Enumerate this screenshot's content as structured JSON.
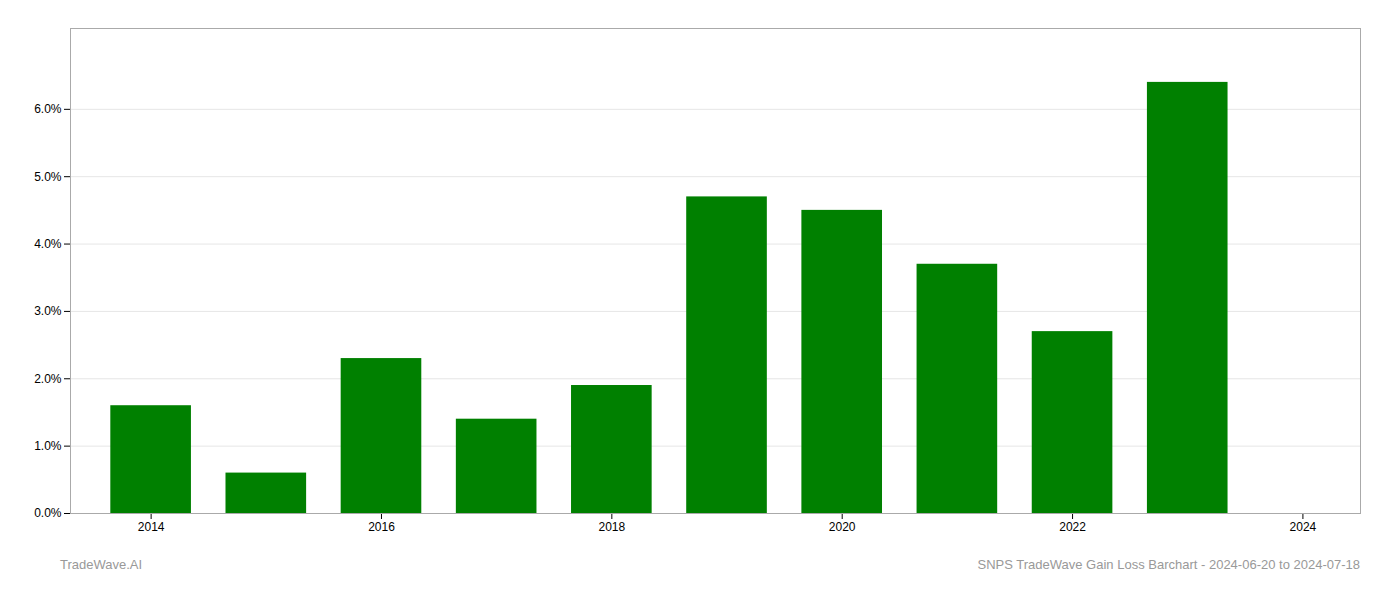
{
  "chart_data": {
    "type": "bar",
    "x": [
      2014,
      2015,
      2016,
      2017,
      2018,
      2019,
      2020,
      2021,
      2022,
      2023
    ],
    "values": [
      0.016,
      0.006,
      0.023,
      0.014,
      0.019,
      0.047,
      0.045,
      0.037,
      0.027,
      0.064
    ],
    "color": "#008000",
    "xlim": [
      2013.3,
      2024.5
    ],
    "xticks": [
      2014,
      2016,
      2018,
      2020,
      2022,
      2024
    ],
    "ylim": [
      0,
      0.072
    ],
    "yticks": [
      {
        "value": 0.0,
        "label": "0.0%"
      },
      {
        "value": 0.01,
        "label": "1.0%"
      },
      {
        "value": 0.02,
        "label": "2.0%"
      },
      {
        "value": 0.03,
        "label": "3.0%"
      },
      {
        "value": 0.04,
        "label": "4.0%"
      },
      {
        "value": 0.05,
        "label": "5.0%"
      },
      {
        "value": 0.06,
        "label": "6.0%"
      }
    ],
    "grid": true,
    "annotations": [
      "TradeWave.AI",
      "SNPS TradeWave Gain Loss Barchart - 2024-06-20 to 2024-07-18"
    ]
  }
}
